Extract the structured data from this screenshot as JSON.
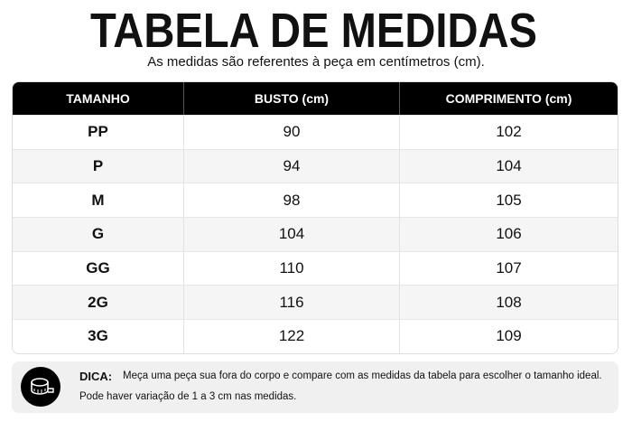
{
  "header": {
    "title": "TABELA DE MEDIDAS",
    "subtitle": "As medidas são referentes à peça em centímetros (cm)."
  },
  "table": {
    "columns": [
      "TAMANHO",
      "BUSTO (cm)",
      "COMPRIMENTO (cm)"
    ],
    "rows": [
      [
        "PP",
        90,
        102
      ],
      [
        "P",
        94,
        104
      ],
      [
        "M",
        98,
        105
      ],
      [
        "G",
        104,
        106
      ],
      [
        "GG",
        110,
        107
      ],
      [
        "2G",
        116,
        108
      ],
      [
        "3G",
        122,
        109
      ]
    ]
  },
  "tip": {
    "label": "DICA:",
    "line1": "Meça uma peça sua fora do corpo e compare com as medidas da tabela para escolher o tamanho ideal.",
    "line2": "Pode haver variação de 1 a 3 cm nas medidas."
  }
}
